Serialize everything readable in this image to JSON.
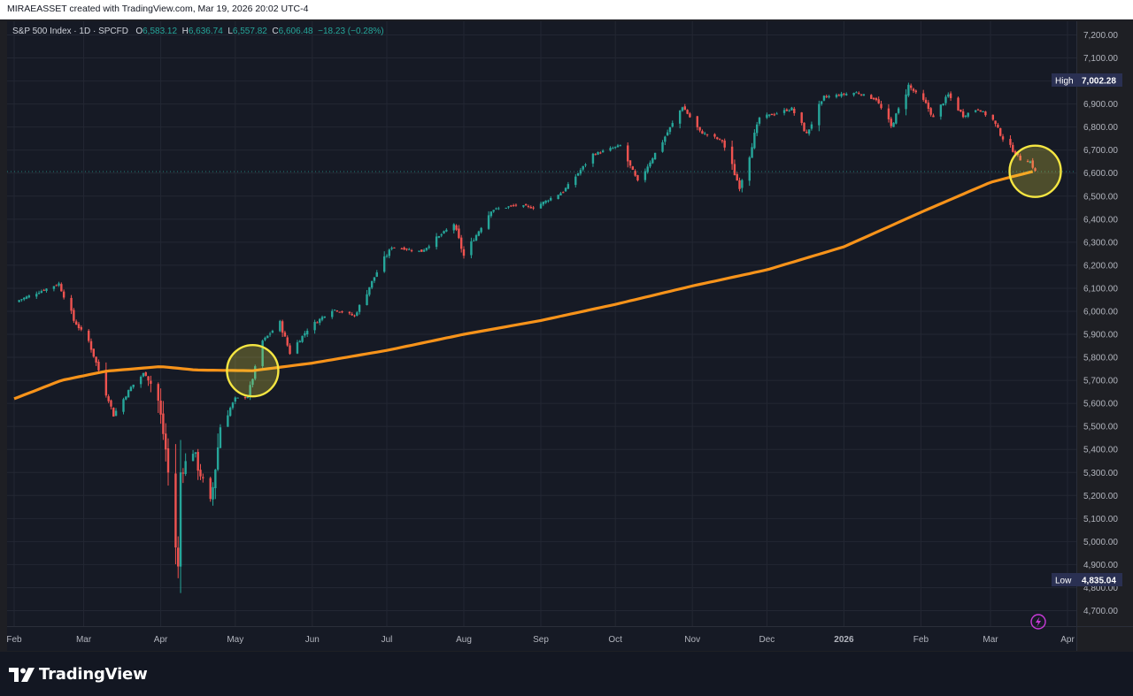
{
  "header": {
    "attribution": "MIRAEASSET created with TradingView.com, Mar 19, 2026 20:02 UTC-4"
  },
  "legend": {
    "symbol": "S&P 500 Index · 1D · SPCFD",
    "open_label": "O",
    "open": "6,583.12",
    "high_label": "H",
    "high": "6,636.74",
    "low_label": "L",
    "low": "6,557.82",
    "close_label": "C",
    "close": "6,606.48",
    "change": "−18.23 (−0.28%)"
  },
  "price_badges": {
    "high_label": "High",
    "high_value": "7,002.28",
    "low_label": "Low",
    "low_value": "4,835.04"
  },
  "footer": {
    "brand": "TradingView"
  },
  "colors": {
    "background": "#161a25",
    "up": "#26a69a",
    "down": "#ef5350",
    "moving_average": "#f7931a",
    "highlight_circle": "#f5e642",
    "price_line": "#26a69a",
    "badge_bg": "#2a3052"
  },
  "icons": [
    "lightning-icon",
    "tradingview-logo-icon"
  ],
  "chart_data": {
    "type": "candlestick",
    "title": "",
    "y_axis": {
      "side": "right",
      "ylim": [
        4650,
        7275
      ],
      "ticks": [
        "7,200.00",
        "7,100.00",
        "7,000.00",
        "6,900.00",
        "6,800.00",
        "6,700.00",
        "6,600.00",
        "6,500.00",
        "6,400.00",
        "6,300.00",
        "6,200.00",
        "6,100.00",
        "6,000.00",
        "5,900.00",
        "5,800.00",
        "5,700.00",
        "5,600.00",
        "5,500.00",
        "5,400.00",
        "5,300.00",
        "5,200.00",
        "5,100.00",
        "5,000.00",
        "4,900.00",
        "4,800.00",
        "4,700.00"
      ]
    },
    "x_axis": {
      "labels": [
        "Feb",
        "Mar",
        "Apr",
        "May",
        "Jun",
        "Jul",
        "Aug",
        "Sep",
        "Oct",
        "Nov",
        "Dec",
        "2026",
        "Feb",
        "Mar",
        "Apr"
      ],
      "start": "2025-02-01",
      "end": "2026-04-01"
    },
    "grid": true,
    "legend_placement": "top-left",
    "price_series": {
      "name": "S&P 500 Index",
      "anchors": [
        [
          "2025-02-01",
          6040
        ],
        [
          "2025-02-10",
          6080
        ],
        [
          "2025-02-19",
          6120
        ],
        [
          "2025-02-25",
          5960
        ],
        [
          "2025-03-03",
          5870
        ],
        [
          "2025-03-10",
          5650
        ],
        [
          "2025-03-13",
          5550
        ],
        [
          "2025-03-20",
          5670
        ],
        [
          "2025-03-26",
          5740
        ],
        [
          "2025-03-31",
          5610
        ],
        [
          "2025-04-03",
          5400
        ],
        [
          "2025-04-08",
          4880
        ],
        [
          "2025-04-09",
          5300
        ],
        [
          "2025-04-14",
          5400
        ],
        [
          "2025-04-21",
          5150
        ],
        [
          "2025-04-25",
          5500
        ],
        [
          "2025-05-01",
          5620
        ],
        [
          "2025-05-06",
          5630
        ],
        [
          "2025-05-12",
          5870
        ],
        [
          "2025-05-19",
          5950
        ],
        [
          "2025-05-23",
          5820
        ],
        [
          "2025-05-30",
          5920
        ],
        [
          "2025-06-09",
          6010
        ],
        [
          "2025-06-18",
          5980
        ],
        [
          "2025-06-27",
          6170
        ],
        [
          "2025-07-03",
          6280
        ],
        [
          "2025-07-15",
          6260
        ],
        [
          "2025-07-28",
          6380
        ],
        [
          "2025-08-01",
          6240
        ],
        [
          "2025-08-12",
          6440
        ],
        [
          "2025-08-22",
          6460
        ],
        [
          "2025-08-29",
          6450
        ],
        [
          "2025-09-10",
          6520
        ],
        [
          "2025-09-22",
          6680
        ],
        [
          "2025-10-03",
          6720
        ],
        [
          "2025-10-10",
          6560
        ],
        [
          "2025-10-20",
          6740
        ],
        [
          "2025-10-28",
          6890
        ],
        [
          "2025-11-04",
          6780
        ],
        [
          "2025-11-13",
          6740
        ],
        [
          "2025-11-20",
          6540
        ],
        [
          "2025-11-28",
          6840
        ],
        [
          "2025-12-05",
          6860
        ],
        [
          "2025-12-11",
          6880
        ],
        [
          "2025-12-17",
          6770
        ],
        [
          "2025-12-24",
          6930
        ],
        [
          "2026-01-06",
          6950
        ],
        [
          "2026-01-14",
          6920
        ],
        [
          "2026-01-20",
          6800
        ],
        [
          "2026-01-27",
          6980
        ],
        [
          "2026-02-03",
          6900
        ],
        [
          "2026-02-06",
          6840
        ],
        [
          "2026-02-12",
          6940
        ],
        [
          "2026-02-18",
          6850
        ],
        [
          "2026-02-24",
          6880
        ],
        [
          "2026-03-02",
          6830
        ],
        [
          "2026-03-06",
          6750
        ],
        [
          "2026-03-10",
          6700
        ],
        [
          "2026-03-13",
          6660
        ],
        [
          "2026-03-17",
          6650
        ],
        [
          "2026-03-19",
          6606.48
        ]
      ]
    },
    "moving_average": {
      "anchors": [
        [
          "2025-02-01",
          5620
        ],
        [
          "2025-02-20",
          5700
        ],
        [
          "2025-03-10",
          5740
        ],
        [
          "2025-04-01",
          5760
        ],
        [
          "2025-04-15",
          5745
        ],
        [
          "2025-05-08",
          5742
        ],
        [
          "2025-06-01",
          5775
        ],
        [
          "2025-07-01",
          5830
        ],
        [
          "2025-08-01",
          5900
        ],
        [
          "2025-09-01",
          5960
        ],
        [
          "2025-10-01",
          6030
        ],
        [
          "2025-11-01",
          6110
        ],
        [
          "2025-12-01",
          6180
        ],
        [
          "2026-01-01",
          6280
        ],
        [
          "2026-02-01",
          6430
        ],
        [
          "2026-03-01",
          6560
        ],
        [
          "2026-03-19",
          6610
        ]
      ]
    },
    "current_price": 6606.48,
    "highlights": [
      {
        "date": "2025-05-08",
        "value": 5742
      },
      {
        "date": "2026-03-19",
        "value": 6608
      }
    ]
  }
}
